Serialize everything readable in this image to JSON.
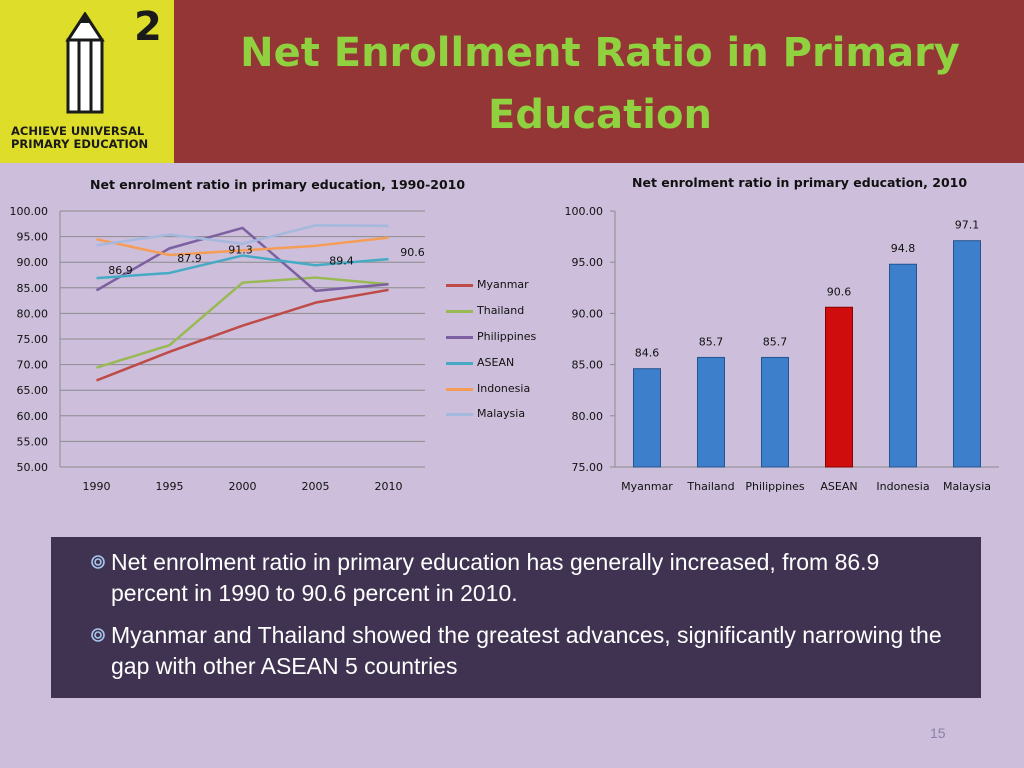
{
  "header": {
    "logo_number": "2",
    "logo_text_lines": [
      "ACHIEVE UNIVERSAL",
      "PRIMARY EDUCATION"
    ],
    "title_lines": [
      "Net Enrollment Ratio in Primary",
      "Education"
    ],
    "colors": {
      "header_bg": "#943536",
      "logo_bg": "#dddd2a",
      "title": "#8fd13f"
    }
  },
  "chart_data": [
    {
      "type": "line",
      "title": "Net enrolment ratio in primary education, 1990-2010",
      "x": [
        "1990",
        "1995",
        "2000",
        "2005",
        "2010"
      ],
      "y_ticks": [
        "100.00",
        "95.00",
        "90.00",
        "85.00",
        "80.00",
        "75.00",
        "70.00",
        "65.00",
        "60.00",
        "55.00",
        "50.00"
      ],
      "ylim": [
        50,
        100
      ],
      "grid": true,
      "legend": "right",
      "series": [
        {
          "name": "Myanmar",
          "color": "#be4b48",
          "values": [
            66.9,
            72.5,
            77.6,
            82.1,
            84.6
          ]
        },
        {
          "name": "Thailand",
          "color": "#98b954",
          "values": [
            69.4,
            73.8,
            86.0,
            87.0,
            85.7
          ]
        },
        {
          "name": "Philippines",
          "color": "#7d60a0",
          "values": [
            84.5,
            92.7,
            96.7,
            84.4,
            85.7
          ]
        },
        {
          "name": "ASEAN",
          "color": "#46aac5",
          "values": [
            86.9,
            87.9,
            91.3,
            89.4,
            90.6
          ]
        },
        {
          "name": "Indonesia",
          "color": "#f59d56",
          "values": [
            94.5,
            91.4,
            92.3,
            93.2,
            94.8
          ]
        },
        {
          "name": "Malaysia",
          "color": "#a5b9de",
          "values": [
            93.3,
            95.4,
            93.6,
            97.2,
            97.1
          ]
        }
      ],
      "data_labels": [
        {
          "series": "ASEAN",
          "x": "1990",
          "text": "86.9"
        },
        {
          "series": "ASEAN",
          "x": "1995",
          "text": "87.9"
        },
        {
          "series": "ASEAN",
          "x": "2000",
          "text": "91.3"
        },
        {
          "series": "ASEAN",
          "x": "2005",
          "text": "89.4"
        },
        {
          "series": "ASEAN",
          "x": "2010",
          "text": "90.6"
        }
      ]
    },
    {
      "type": "bar",
      "title": "Net enrolment ratio in primary education, 2010",
      "categories": [
        "Myanmar",
        "Thailand",
        "Philippines",
        "ASEAN",
        "Indonesia",
        "Malaysia"
      ],
      "values": [
        84.6,
        85.7,
        85.7,
        90.6,
        94.8,
        97.1
      ],
      "value_labels": [
        "84.6",
        "85.7",
        "85.7",
        "90.6",
        "94.8",
        "97.1"
      ],
      "y_ticks": [
        "100.00",
        "95.00",
        "90.00",
        "85.00",
        "80.00",
        "75.00"
      ],
      "ylim": [
        75,
        100
      ],
      "grid": false,
      "bar_colors": [
        "#3e7fcb",
        "#3e7fcb",
        "#3e7fcb",
        "#d00d0d",
        "#3e7fcb",
        "#3e7fcb"
      ]
    }
  ],
  "bullets": [
    "Net enrolment ratio in primary education has generally increased, from 86.9 percent in 1990 to 90.6 percent in 2010.",
    "Myanmar and Thailand showed the greatest advances, significantly narrowing the gap with other ASEAN 5 countries"
  ],
  "bullet_icon": "circle-bullet-icon",
  "page_number": "15"
}
